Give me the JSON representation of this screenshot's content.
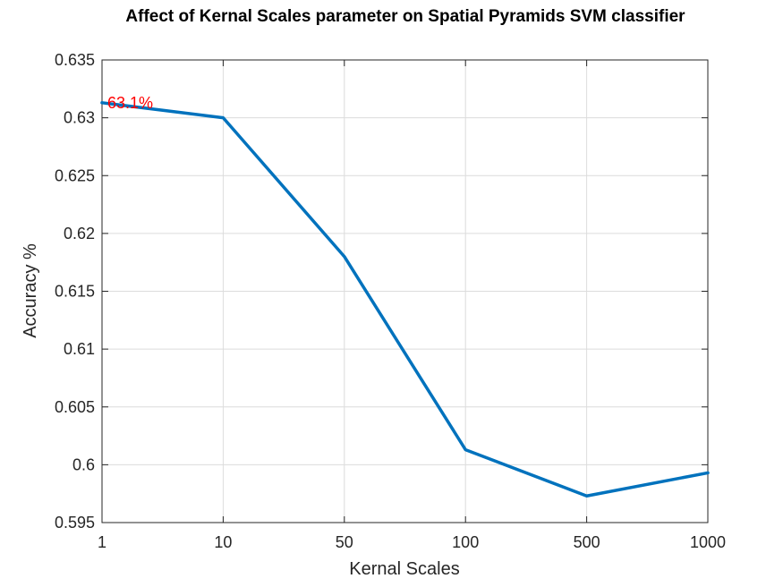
{
  "chart_data": {
    "type": "line",
    "title": "Affect of Kernal Scales parameter on Spatial Pyramids SVM classifier",
    "xlabel": "Kernal Scales",
    "ylabel": "Accuracy %",
    "categories": [
      "1",
      "10",
      "50",
      "100",
      "500",
      "1000"
    ],
    "series": [
      {
        "values": [
          0.6313,
          0.63,
          0.618,
          0.6013,
          0.5973,
          0.5993
        ]
      }
    ],
    "ylim": [
      0.595,
      0.635
    ],
    "yticks": [
      "0.595",
      "0.6",
      "0.605",
      "0.61",
      "0.615",
      "0.62",
      "0.625",
      "0.63",
      "0.635"
    ],
    "grid": true,
    "line_color": "#0072BD",
    "annotation": {
      "text": "63.1%",
      "color": "#FF0000",
      "at_category": "1"
    }
  }
}
